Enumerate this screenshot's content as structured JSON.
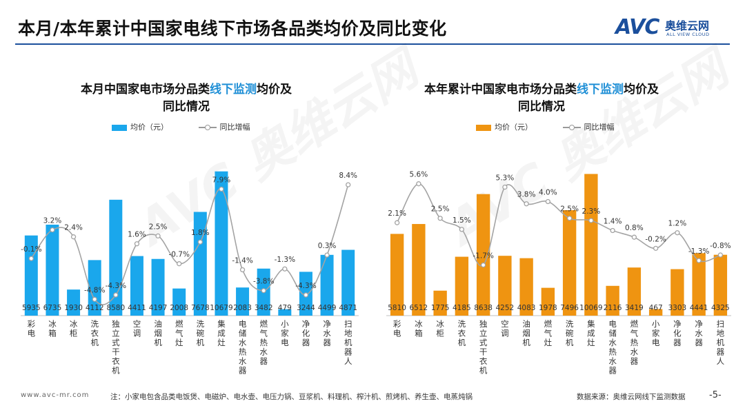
{
  "header": {
    "title": "本月/本年累计中国家电线下市场各品类均价及同比变化"
  },
  "logo": {
    "brand": "AVC",
    "cn": "奥维云网",
    "en": "ALL VIEW CLOUD"
  },
  "colors": {
    "blue": "#1aa7ec",
    "orange": "#ef9411",
    "line": "#a3a3a3",
    "accent": "#1b4f9c"
  },
  "chart_data": [
    {
      "type": "bar",
      "title_pre": "本月中国家电市场分品类",
      "title_hl": "线下监测",
      "title_post": "均价及",
      "title_line2": "同比情况",
      "legend_bar": "均价（元）",
      "legend_line": "同比增幅",
      "categories": [
        "彩电",
        "冰箱",
        "冰柜",
        "洗衣机",
        "独立式干衣机",
        "空调",
        "油烟机",
        "燃气灶",
        "洗碗机",
        "集成灶",
        "电储水热水器",
        "燃气热水器",
        "小家电",
        "净化器",
        "净水器",
        "扫地机器人"
      ],
      "values": [
        5935,
        6735,
        1930,
        4112,
        8580,
        4411,
        4197,
        2008,
        7678,
        10679,
        2083,
        3482,
        479,
        3244,
        4499,
        4871
      ],
      "value_labels": [
        "5935",
        "6735",
        "1930",
        "4112",
        "8580",
        "4411",
        "4197",
        "2008",
        "7678",
        "10679",
        "2083",
        "3482",
        "479",
        "3244",
        "4499",
        "4871"
      ],
      "yoy": [
        -0.1,
        3.2,
        2.4,
        -4.8,
        -4.3,
        1.6,
        2.5,
        -0.7,
        1.8,
        7.9,
        -1.4,
        -3.8,
        -1.3,
        -4.3,
        0.3,
        8.4
      ],
      "yoy_labels": [
        "-0.1%",
        "3.2%",
        "2.4%",
        "-4.8%",
        "-4.3%",
        "1.6%",
        "2.5%",
        "-0.7%",
        "1.8%",
        "7.9%",
        "-1.4%",
        "-3.8%",
        "-1.3%",
        "-4.3%",
        "0.3%",
        "8.4%"
      ],
      "ylim": [
        0,
        12500
      ],
      "yoy_lim": [
        -7,
        10
      ]
    },
    {
      "type": "bar",
      "title_pre": "本年累计中国家电市场分品类",
      "title_hl": "线下监测",
      "title_post": "均价及",
      "title_line2": "同比情况",
      "legend_bar": "均价（元）",
      "legend_line": "同比增幅",
      "categories": [
        "彩电",
        "冰箱",
        "冰柜",
        "洗衣机",
        "独立式干衣机",
        "空调",
        "油烟机",
        "燃气灶",
        "洗碗机",
        "集成灶",
        "电储水热水器",
        "燃气热水器",
        "小家电",
        "净化器",
        "净水器",
        "扫地机器人"
      ],
      "values": [
        5810,
        6512,
        1775,
        4185,
        8638,
        4252,
        4083,
        1978,
        7496,
        10069,
        2116,
        3419,
        467,
        3303,
        4441,
        4325
      ],
      "value_labels": [
        "5810",
        "6512",
        "1775",
        "4185",
        "8638",
        "4252",
        "4083",
        "1978",
        "7496",
        "10069",
        "2116",
        "3419",
        "467",
        "3303",
        "4441",
        "4325"
      ],
      "yoy": [
        2.1,
        5.6,
        2.5,
        1.5,
        -1.7,
        5.3,
        3.8,
        4.0,
        2.5,
        2.3,
        1.4,
        0.8,
        -0.2,
        1.2,
        -1.3,
        -0.8
      ],
      "yoy_labels": [
        "2.1%",
        "5.6%",
        "2.5%",
        "1.5%",
        "-1.7%",
        "5.3%",
        "3.8%",
        "4.0%",
        "2.5%",
        "2.3%",
        "1.4%",
        "0.8%",
        "-0.2%",
        "1.2%",
        "-1.3%",
        "-0.8%"
      ],
      "ylim": [
        0,
        12000
      ],
      "yoy_lim": [
        -6,
        7.5
      ]
    }
  ],
  "footer": {
    "url": "www.avc-mr.com",
    "note": "注：小家电包含品类电饭煲、电磁炉、电水壶、电压力锅、豆浆机、料理机、榨汁机、煎烤机、养生壶、电蒸炖锅",
    "source": "数据来源：奥维云网线下监测数据",
    "page": "-5-"
  }
}
